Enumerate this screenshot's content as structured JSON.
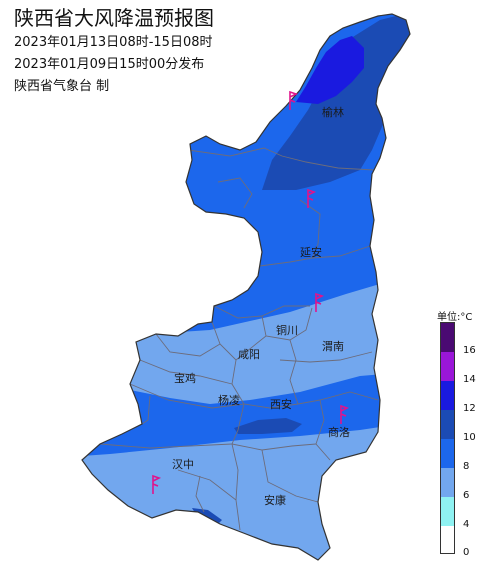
{
  "header": {
    "title": "陕西省大风降温预报图",
    "period": "2023年01月13日08时-15日08时",
    "issued": "2023年01月09日15时00分发布",
    "issuer": "陕西省气象台  制"
  },
  "cities": [
    {
      "id": "yulin",
      "name": "榆林"
    },
    {
      "id": "yanan",
      "name": "延安"
    },
    {
      "id": "tongchuan",
      "name": "铜川"
    },
    {
      "id": "weinan",
      "name": "渭南"
    },
    {
      "id": "xianyang",
      "name": "咸阳"
    },
    {
      "id": "baoji",
      "name": "宝鸡"
    },
    {
      "id": "yangling",
      "name": "杨凌"
    },
    {
      "id": "xian",
      "name": "西安"
    },
    {
      "id": "shangluo",
      "name": "商洛"
    },
    {
      "id": "hanzhong",
      "name": "汉中"
    },
    {
      "id": "ankang",
      "name": "安康"
    }
  ],
  "legend": {
    "title": "单位:°C",
    "ticks": [
      "16",
      "14",
      "12",
      "10",
      "8",
      "6",
      "4",
      "0"
    ],
    "colors": {
      "c0_4": "#ffffff",
      "c4_6": "#8ff2f2",
      "c6_8": "#72a7ee",
      "c8_10": "#1c67ec",
      "c10_12": "#1b4bb4",
      "c12_14": "#1a1ae0",
      "c14_16": "#9a16d8",
      "c16p": "#4a0a72"
    }
  }
}
